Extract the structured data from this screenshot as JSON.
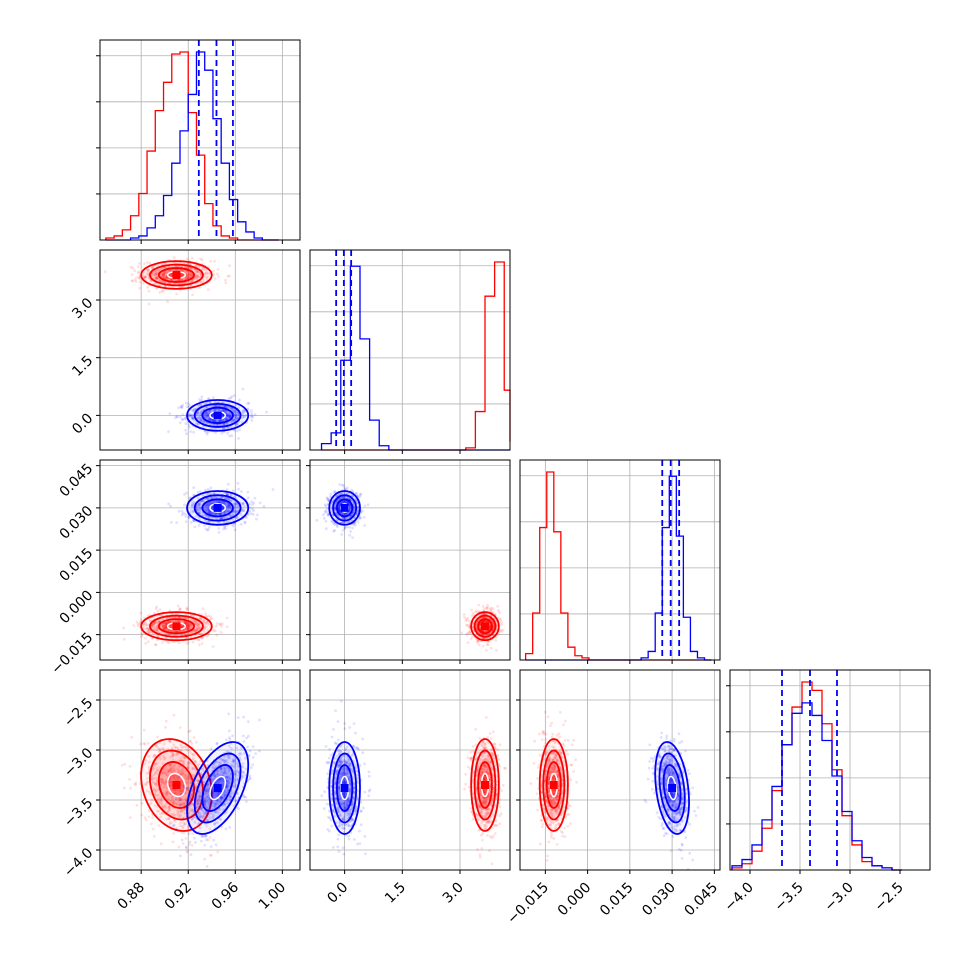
{
  "chart_data": {
    "type": "corner",
    "parameters": [
      {
        "range": [
          0.845,
          1.015
        ],
        "ticks": [
          {
            "v": 0.88,
            "label": "0.88"
          },
          {
            "v": 0.92,
            "label": "0.92"
          },
          {
            "v": 0.96,
            "label": "0.96"
          },
          {
            "v": 1.0,
            "label": "1.00"
          }
        ]
      },
      {
        "range": [
          -0.9,
          4.3
        ],
        "ticks": [
          {
            "v": 0.0,
            "label": "0.0"
          },
          {
            "v": 1.5,
            "label": "1.5"
          },
          {
            "v": 3.0,
            "label": "3.0"
          }
        ]
      },
      {
        "range": [
          -0.024,
          0.047
        ],
        "ticks": [
          {
            "v": -0.015,
            "label": "−0.015"
          },
          {
            "v": 0.0,
            "label": "0.000"
          },
          {
            "v": 0.015,
            "label": "0.015"
          },
          {
            "v": 0.03,
            "label": "0.030"
          },
          {
            "v": 0.045,
            "label": "0.045"
          }
        ]
      },
      {
        "range": [
          -4.2,
          -2.2
        ],
        "ticks": [
          {
            "v": -4.0,
            "label": "−4.0"
          },
          {
            "v": -3.5,
            "label": "−3.5"
          },
          {
            "v": -3.0,
            "label": "−3.0"
          },
          {
            "v": -2.5,
            "label": "−2.5"
          }
        ]
      }
    ],
    "series": [
      {
        "color": "#ff0000",
        "mean": [
          0.91,
          3.65,
          -0.012,
          -3.35
        ],
        "sd": [
          0.015,
          0.18,
          0.0025,
          0.23
        ],
        "corr_last": [
          -0.2,
          0.0,
          0.0
        ]
      },
      {
        "color": "#0000ff",
        "mean": [
          0.945,
          0.0,
          0.03,
          -3.38
        ],
        "sd": [
          0.013,
          0.2,
          0.003,
          0.23
        ],
        "corr_last": [
          0.5,
          0.0,
          -0.3
        ]
      }
    ],
    "hist1d": [
      {
        "bins": [
          0.85,
          0.857,
          0.864,
          0.871,
          0.878,
          0.885,
          0.892,
          0.899,
          0.906,
          0.913,
          0.92,
          0.927,
          0.934,
          0.941,
          0.948,
          0.955,
          0.962,
          0.969,
          0.976,
          0.983,
          0.99,
          0.997
        ],
        "counts": [
          [
            1,
            2,
            5,
            12,
            23,
            44,
            64,
            78,
            92,
            93,
            63,
            42,
            18,
            7,
            2,
            1,
            0,
            0,
            0,
            0,
            0
          ],
          [
            0,
            0,
            0,
            1,
            2,
            6,
            12,
            22,
            38,
            54,
            72,
            93,
            84,
            60,
            38,
            20,
            9,
            4,
            1,
            0,
            0
          ]
        ]
      },
      {
        "bins": [
          -0.6,
          -0.35,
          -0.1,
          0.15,
          0.4,
          0.65,
          0.9,
          1.15,
          1.4,
          1.65,
          1.9,
          2.15,
          2.4,
          2.65,
          2.9,
          3.15,
          3.4,
          3.65,
          3.9,
          4.15,
          4.3
        ],
        "counts": [
          [
            0,
            0,
            0,
            0,
            0,
            0,
            0,
            0,
            0,
            0,
            0,
            0,
            0,
            0,
            0,
            1,
            18,
            72,
            88,
            28,
            4
          ],
          [
            3,
            8,
            42,
            86,
            52,
            14,
            2,
            0,
            0,
            0,
            0,
            0,
            0,
            0,
            0,
            0,
            0,
            0,
            0,
            0,
            0
          ]
        ]
      },
      {
        "bins": [
          -0.022,
          -0.0195,
          -0.017,
          -0.0145,
          -0.012,
          -0.0095,
          -0.007,
          -0.0045,
          -0.002,
          0.0005,
          0.003,
          0.019,
          0.0215,
          0.024,
          0.0265,
          0.029,
          0.0315,
          0.034,
          0.0365,
          0.039,
          0.0415,
          0.044
        ],
        "counts": [
          [
            3,
            22,
            62,
            88,
            60,
            22,
            6,
            2,
            1,
            0,
            0,
            0,
            0,
            0,
            0,
            0,
            0,
            0,
            0,
            0,
            0
          ],
          [
            0,
            0,
            0,
            0,
            0,
            0,
            0,
            0,
            0,
            0,
            0,
            1,
            4,
            22,
            62,
            86,
            58,
            20,
            4,
            1,
            0
          ]
        ]
      },
      {
        "bins": [
          -4.18,
          -4.08,
          -3.98,
          -3.88,
          -3.78,
          -3.68,
          -3.58,
          -3.48,
          -3.38,
          -3.28,
          -3.18,
          -3.08,
          -2.98,
          -2.88,
          -2.78,
          -2.68,
          -2.58,
          -2.48
        ],
        "counts": [
          [
            1,
            3,
            9,
            20,
            38,
            60,
            78,
            90,
            86,
            70,
            48,
            26,
            12,
            4,
            2,
            1,
            0
          ],
          [
            2,
            5,
            12,
            24,
            40,
            60,
            75,
            80,
            74,
            62,
            45,
            28,
            14,
            6,
            2,
            1,
            0
          ]
        ]
      }
    ],
    "quantiles": [
      [
        0.929,
        0.944,
        0.958
      ],
      [
        -0.22,
        -0.02,
        0.17
      ],
      [
        0.0265,
        0.0295,
        0.0325
      ],
      [
        -3.68,
        -3.4,
        -3.13
      ]
    ]
  }
}
